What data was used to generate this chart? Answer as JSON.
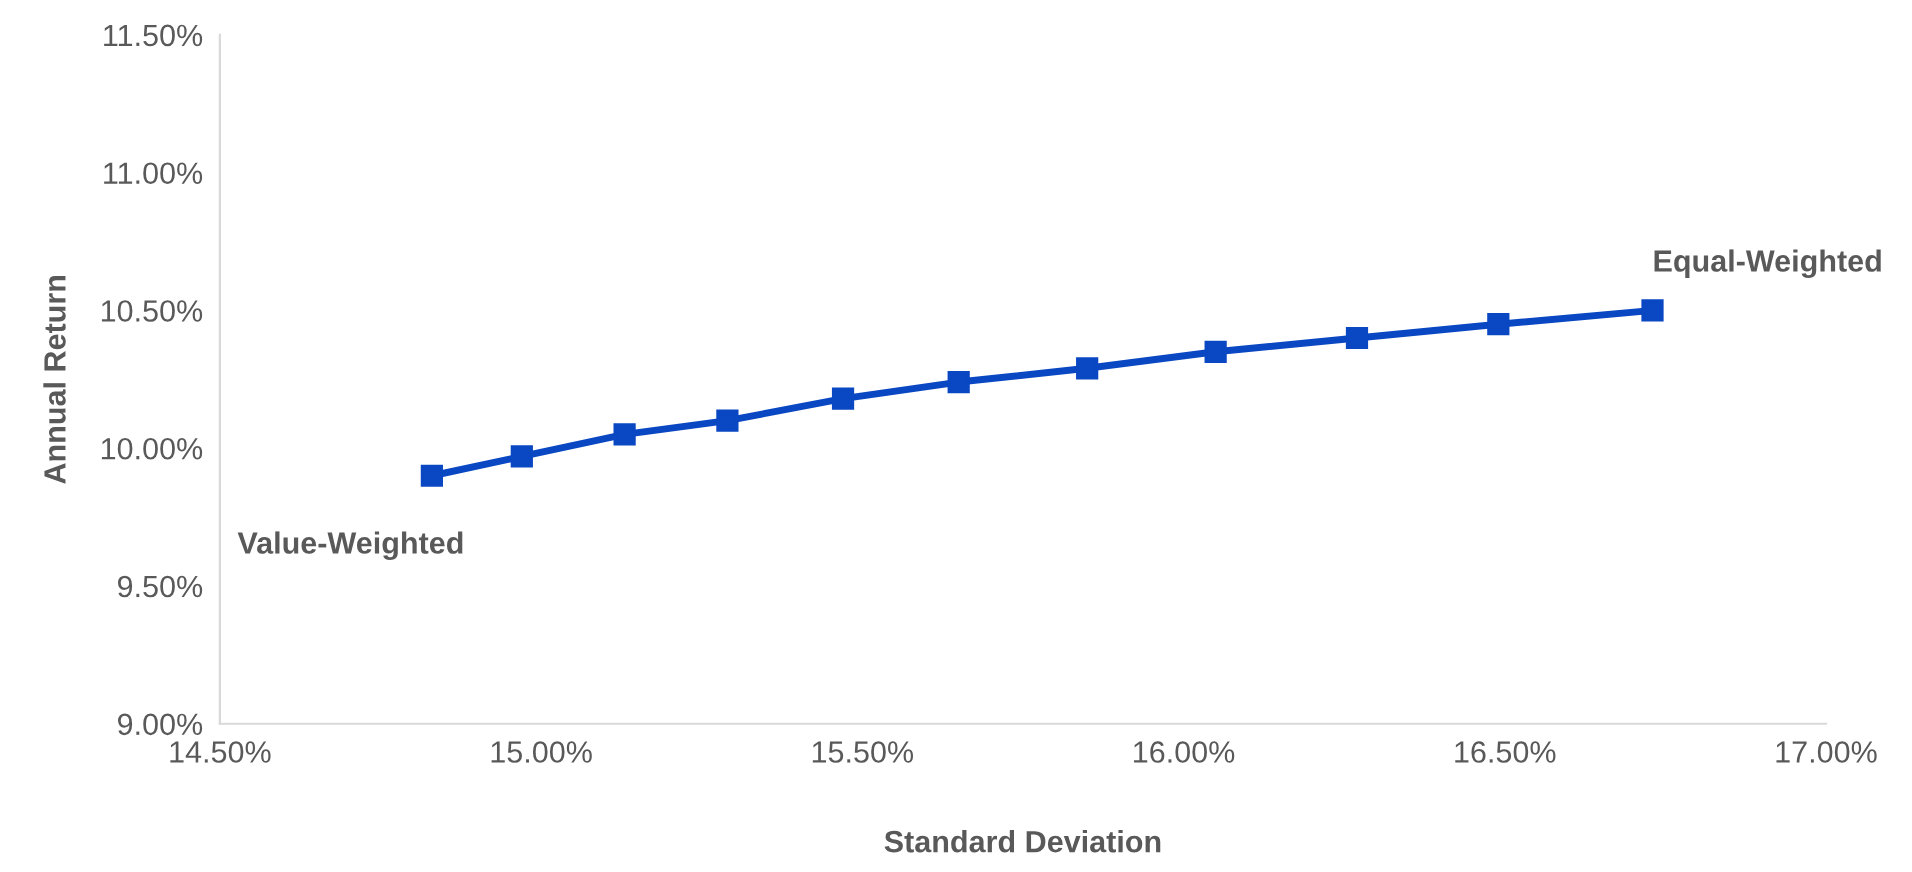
{
  "chart_data": {
    "type": "line",
    "xlabel": "Standard Deviation",
    "ylabel": "Annual Return",
    "x": [
      14.83,
      14.97,
      15.13,
      15.29,
      15.47,
      15.65,
      15.85,
      16.05,
      16.27,
      16.49,
      16.73
    ],
    "series": [
      {
        "color": "#0a47c2",
        "values": [
          9.9,
          9.97,
          10.05,
          10.1,
          10.18,
          10.24,
          10.29,
          10.35,
          10.4,
          10.45,
          10.5
        ]
      }
    ],
    "xlim": [
      14.5,
      17.0
    ],
    "ylim": [
      9.0,
      11.5
    ],
    "xticks": [
      {
        "value": 14.5,
        "label": "14.50%"
      },
      {
        "value": 15.0,
        "label": "15.00%"
      },
      {
        "value": 15.5,
        "label": "15.50%"
      },
      {
        "value": 16.0,
        "label": "16.00%"
      },
      {
        "value": 16.5,
        "label": "16.50%"
      },
      {
        "value": 17.0,
        "label": "17.00%"
      }
    ],
    "yticks": [
      {
        "value": 9.0,
        "label": "9.00%"
      },
      {
        "value": 9.5,
        "label": "9.50%"
      },
      {
        "value": 10.0,
        "label": "10.00%"
      },
      {
        "value": 10.5,
        "label": "10.50%"
      },
      {
        "value": 11.0,
        "label": "11.00%"
      },
      {
        "value": 11.5,
        "label": "11.50%"
      }
    ],
    "marker": "square",
    "line_style": "solid",
    "grid": false,
    "legend": false,
    "annotations": [
      {
        "text": "Value-Weighted",
        "x": 14.83,
        "y": 9.9
      },
      {
        "text": "Equal-Weighted",
        "x": 16.73,
        "y": 10.5
      }
    ]
  }
}
